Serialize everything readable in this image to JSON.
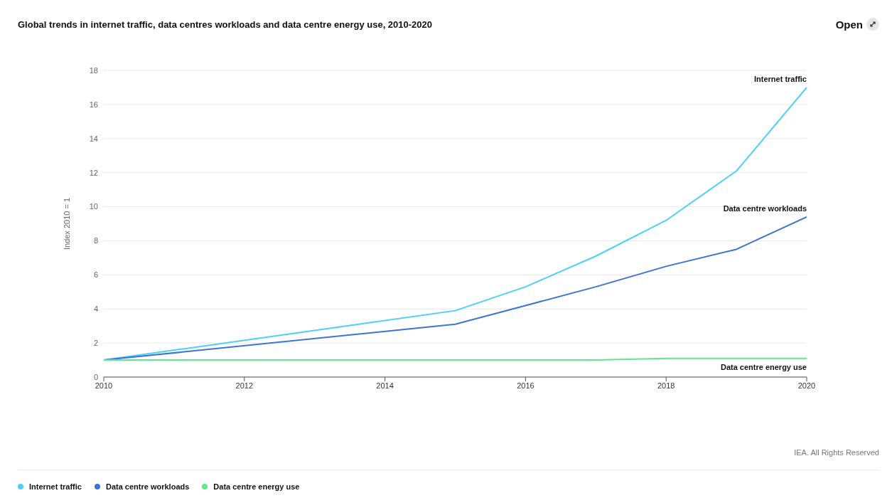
{
  "chart_data": {
    "type": "line",
    "title": "Global trends in internet traffic, data centres workloads and data centre energy use, 2010-2020",
    "ylabel": "Index 2010 = 1",
    "x": [
      2010,
      2015,
      2016,
      2017,
      2018,
      2019,
      2020
    ],
    "series": [
      {
        "name": "Internet traffic",
        "color": "#4dd0f5",
        "values": [
          1,
          3.9,
          5.3,
          7.1,
          9.2,
          12.1,
          17.0
        ]
      },
      {
        "name": "Data centre workloads",
        "color": "#3f72d6",
        "values": [
          1,
          3.1,
          4.2,
          5.3,
          6.5,
          7.5,
          9.4
        ]
      },
      {
        "name": "Data centre energy use",
        "color": "#5ee88f",
        "values": [
          1,
          1,
          1,
          1,
          1.1,
          1.1,
          1.1
        ]
      }
    ],
    "xlim": [
      2010,
      2020
    ],
    "xticks": [
      2010,
      2012,
      2014,
      2016,
      2018,
      2020
    ],
    "ylim": [
      0,
      18
    ],
    "yticks": [
      0,
      2,
      4,
      6,
      8,
      10,
      12,
      14,
      16,
      18
    ],
    "grid": "y",
    "legend": "bottom left",
    "marker": "none",
    "line_style": "solid",
    "annotations": [
      "IEA. All Rights Reserved",
      "Open"
    ]
  }
}
